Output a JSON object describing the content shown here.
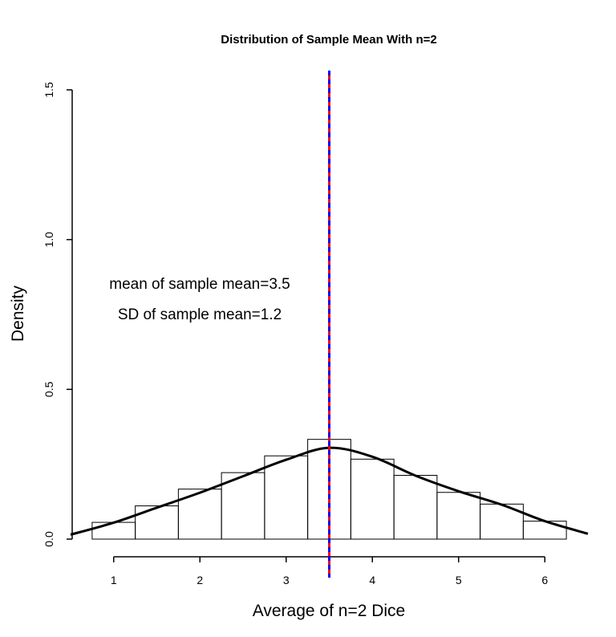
{
  "chart_data": {
    "type": "bar",
    "title": "Distribution of Sample Mean With n=2",
    "xlabel": "Average of n=2 Dice",
    "ylabel": "Density",
    "xlim": [
      0.5,
      6.5
    ],
    "ylim": [
      0,
      1.5
    ],
    "x_ticks": [
      1,
      2,
      3,
      4,
      5,
      6
    ],
    "y_ticks": [
      0.0,
      0.5,
      1.0,
      1.5
    ],
    "y_tick_labels": [
      "0.0",
      "0.5",
      "1.0",
      "1.5"
    ],
    "histogram": {
      "bins": [
        [
          0.75,
          1.25
        ],
        [
          1.25,
          1.75
        ],
        [
          1.75,
          2.25
        ],
        [
          2.25,
          2.75
        ],
        [
          2.75,
          3.25
        ],
        [
          3.25,
          3.75
        ],
        [
          3.75,
          4.25
        ],
        [
          4.25,
          4.75
        ],
        [
          4.75,
          5.25
        ],
        [
          5.25,
          5.75
        ],
        [
          5.75,
          6.25
        ]
      ],
      "values": [
        0.056,
        0.111,
        0.167,
        0.222,
        0.278,
        0.333,
        0.267,
        0.213,
        0.156,
        0.117,
        0.06
      ]
    },
    "density_curve": {
      "x": [
        0.5,
        1.0,
        1.5,
        2.0,
        2.5,
        3.0,
        3.5,
        4.0,
        4.5,
        5.0,
        5.5,
        6.0,
        6.5
      ],
      "y": [
        0.015,
        0.055,
        0.105,
        0.155,
        0.21,
        0.265,
        0.305,
        0.275,
        0.212,
        0.16,
        0.115,
        0.06,
        0.018
      ]
    },
    "vertical_lines": [
      {
        "x": 3.5,
        "color": "#ff0000",
        "style": "solid"
      },
      {
        "x": 3.5,
        "color": "#0000ff",
        "style": "dashed"
      }
    ],
    "annotations": [
      "mean of sample mean=3.5",
      "SD of sample mean=1.2"
    ],
    "grid": false,
    "legend": "none"
  }
}
